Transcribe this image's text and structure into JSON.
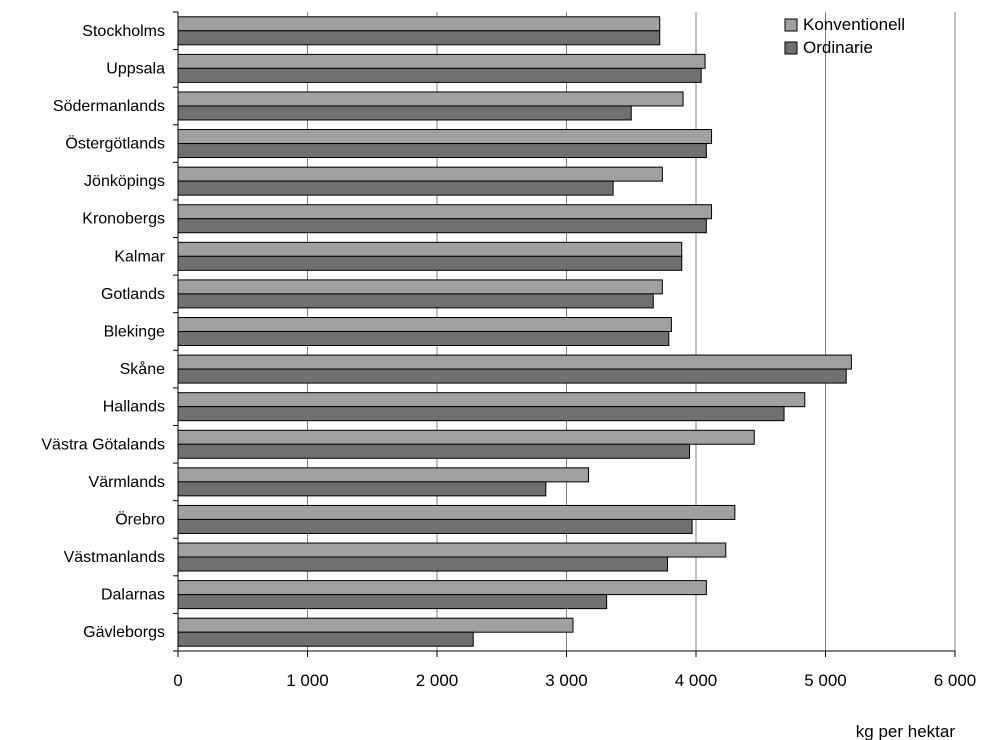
{
  "chart_data": {
    "type": "bar",
    "orientation": "horizontal",
    "categories": [
      "Stockholms",
      "Uppsala",
      "Södermanlands",
      "Östergötlands",
      "Jönköpings",
      "Kronobergs",
      "Kalmar",
      "Gotlands",
      "Blekinge",
      "Skåne",
      "Hallands",
      "Västra Götalands",
      "Värmlands",
      "Örebro",
      "Västmanlands",
      "Dalarnas",
      "Gävleborgs"
    ],
    "series": [
      {
        "name": "Konventionell",
        "color": "#a0a0a0",
        "values": [
          3720,
          4070,
          3900,
          4120,
          3740,
          4120,
          3890,
          3740,
          3810,
          5200,
          4840,
          4450,
          3170,
          4300,
          4230,
          4080,
          3050
        ]
      },
      {
        "name": "Ordinarie",
        "color": "#707070",
        "values": [
          3720,
          4040,
          3500,
          4080,
          3360,
          4080,
          3890,
          3670,
          3790,
          5160,
          4680,
          3950,
          2840,
          3970,
          3780,
          3310,
          2280
        ]
      }
    ],
    "xlim": [
      0,
      6000
    ],
    "xticks": [
      0,
      1000,
      2000,
      3000,
      4000,
      5000,
      6000
    ],
    "xtick_labels": [
      "0",
      "1 000",
      "2 000",
      "3 000",
      "4 000",
      "5 000",
      "6 000"
    ],
    "title": "",
    "xlabel": "kg per hektar",
    "ylabel": "",
    "grid": "vertical",
    "legend_position": "top-right"
  }
}
